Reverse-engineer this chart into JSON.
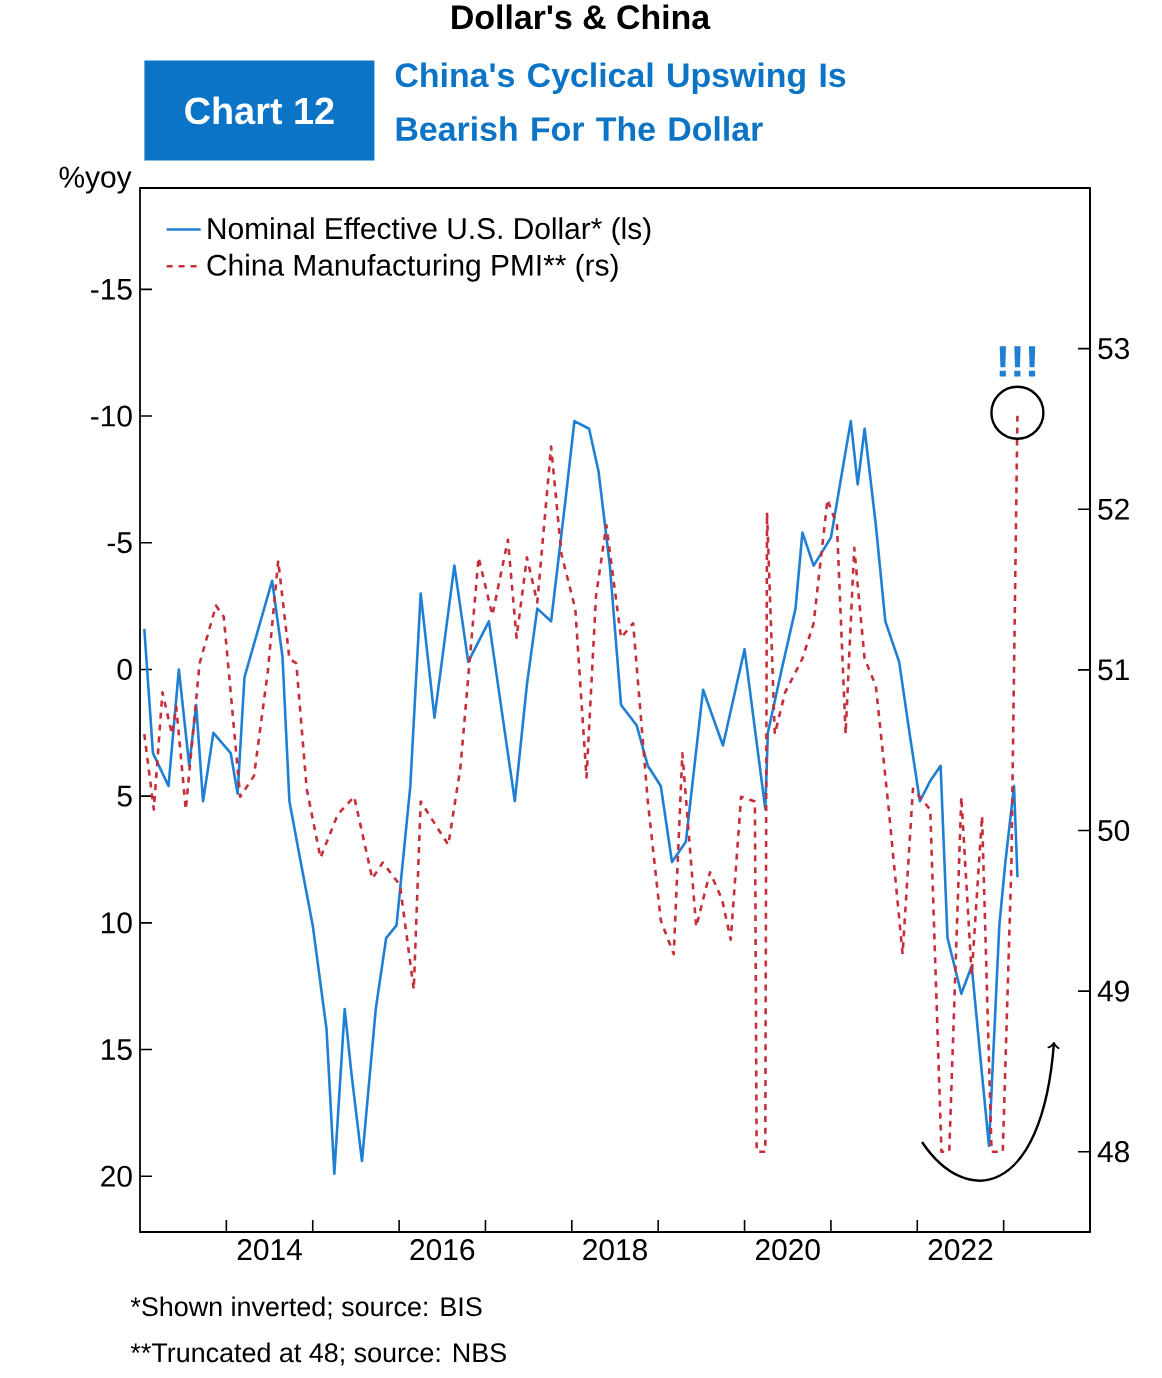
{
  "chart_data": {
    "type": "line",
    "title": "Dollar's & China",
    "subtitle": "China's Cyclical Upswing Is Bearish For The Dollar",
    "ylabel": "%yoy",
    "annotations": [
      "Chart 12",
      "!!!",
      "*Shown inverted; source: BIS",
      "**Truncated at 48; source: NBS"
    ],
    "xlim": [
      2013,
      2024
    ],
    "xticks": [
      {
        "value": 2014,
        "label": null
      },
      {
        "value": 2015,
        "label": null
      },
      {
        "value": 2016,
        "label": null
      },
      {
        "value": 2017,
        "label": null
      },
      {
        "value": 2018,
        "label": null
      },
      {
        "value": 2019,
        "label": null
      },
      {
        "value": 2020,
        "label": null
      },
      {
        "value": 2021,
        "label": null
      },
      {
        "value": 2022,
        "label": null
      },
      {
        "value": 2023,
        "label": null
      },
      {
        "value": 2014.5,
        "label": "2014"
      },
      {
        "value": 2016.5,
        "label": "2016"
      },
      {
        "value": 2018.5,
        "label": "2018"
      },
      {
        "value": 2020.5,
        "label": "2020"
      },
      {
        "value": 2022.5,
        "label": "2022"
      }
    ],
    "ylim": [
      22.2,
      -19
    ],
    "yticks": [
      -15,
      -10,
      -5,
      0,
      5,
      10,
      15,
      20
    ],
    "y2lim": [
      47.5,
      54
    ],
    "y2ticks": [
      48,
      49,
      50,
      51,
      52,
      53
    ],
    "legend": "top left",
    "series": [
      {
        "name": "Nominal Effective U.S. Dollar* (ls)",
        "color": "#1f7fd3",
        "line_style": "solid",
        "x": [
          2013.05,
          2013.15,
          2013.33,
          2013.45,
          2013.57,
          2013.65,
          2013.73,
          2013.85,
          2014.05,
          2014.13,
          2014.21,
          2014.37,
          2014.53,
          2014.65,
          2014.73,
          2014.85,
          2015.0,
          2015.16,
          2015.25,
          2015.37,
          2015.45,
          2015.57,
          2015.73,
          2015.85,
          2015.97,
          2016.13,
          2016.25,
          2016.41,
          2016.64,
          2016.8,
          2017.04,
          2017.2,
          2017.34,
          2017.48,
          2017.6,
          2017.76,
          2017.92,
          2018.03,
          2018.2,
          2018.31,
          2018.44,
          2018.57,
          2018.75,
          2018.88,
          2019.03,
          2019.16,
          2019.32,
          2019.52,
          2019.75,
          2020.0,
          2020.24,
          2020.27,
          2020.43,
          2020.59,
          2020.67,
          2020.8,
          2021.0,
          2021.23,
          2021.31,
          2021.39,
          2021.52,
          2021.63,
          2021.79,
          2021.91,
          2022.03,
          2022.15,
          2022.27,
          2022.35,
          2022.51,
          2022.63,
          2022.75,
          2022.83,
          2022.95,
          2023.02,
          2023.12,
          2023.16
        ],
        "values": [
          -1.6,
          3.3,
          4.6,
          0,
          3.8,
          1.4,
          5.2,
          2.5,
          3.3,
          4.9,
          0.3,
          -1.6,
          -3.5,
          -0.5,
          5.2,
          7.4,
          10.1,
          14.2,
          19.9,
          13.4,
          16,
          19.4,
          13.4,
          10.6,
          10.1,
          4.6,
          -3,
          1.9,
          -4.1,
          -0.3,
          -1.9,
          1.9,
          5.2,
          0.6,
          -2.4,
          -1.9,
          -6.5,
          -9.8,
          -9.5,
          -7.8,
          -4.1,
          1.4,
          2.2,
          3.8,
          4.6,
          7.6,
          6.8,
          0.8,
          3,
          -0.8,
          5.5,
          2.5,
          0,
          -2.4,
          -5.4,
          -4.1,
          -5.2,
          -9.8,
          -7.3,
          -9.5,
          -5.7,
          -1.9,
          -0.3,
          2.5,
          5.2,
          4.4,
          3.8,
          10.6,
          12.8,
          11.7,
          16,
          18.8,
          10.1,
          7.6,
          4.6,
          8.2
        ]
      },
      {
        "name": "China Manufacturing PMI** (rs)",
        "color": "#c62f3a",
        "line_style": "dashed",
        "axis": "y2",
        "x": [
          2013.05,
          2013.16,
          2013.26,
          2013.37,
          2013.42,
          2013.53,
          2013.69,
          2013.88,
          2013.97,
          2014.16,
          2014.32,
          2014.48,
          2014.6,
          2014.73,
          2014.81,
          2014.93,
          2015.09,
          2015.29,
          2015.48,
          2015.69,
          2015.81,
          2016.01,
          2016.17,
          2016.25,
          2016.57,
          2016.71,
          2016.92,
          2017.08,
          2017.26,
          2017.36,
          2017.48,
          2017.6,
          2017.76,
          2017.88,
          2018.04,
          2018.17,
          2018.28,
          2018.4,
          2018.57,
          2018.71,
          2018.88,
          2019.03,
          2019.18,
          2019.28,
          2019.44,
          2019.6,
          2019.74,
          2019.84,
          2019.96,
          2020.12,
          2020.14,
          2020.24,
          2020.26,
          2020.35,
          2020.47,
          2020.67,
          2020.8,
          2020.96,
          2021.07,
          2021.17,
          2021.27,
          2021.39,
          2021.52,
          2021.67,
          2021.83,
          2021.95,
          2022.15,
          2022.28,
          2022.37,
          2022.51,
          2022.63,
          2022.75,
          2022.86,
          2022.99,
          2023.09,
          2023.16
        ],
        "values": [
          50.6,
          50.13,
          50.86,
          50.6,
          50.77,
          50.13,
          51.04,
          51.4,
          51.33,
          50.21,
          50.34,
          50.99,
          51.68,
          51.07,
          51.04,
          50.26,
          49.83,
          50.1,
          50.21,
          49.7,
          49.8,
          49.66,
          49.01,
          50.18,
          49.91,
          50.39,
          51.7,
          51.34,
          51.81,
          51.2,
          51.7,
          51.42,
          52.39,
          51.72,
          51.38,
          50.33,
          51.46,
          51.9,
          51.2,
          51.29,
          50.18,
          49.44,
          49.23,
          50.48,
          49.4,
          49.74,
          49.57,
          49.32,
          50.21,
          50.18,
          48,
          48,
          51.98,
          50.6,
          50.86,
          51.07,
          51.29,
          52.06,
          51.9,
          50.6,
          51.76,
          51.07,
          50.9,
          50.13,
          49.23,
          50.26,
          50.13,
          48,
          48,
          50.21,
          49.1,
          50.09,
          48,
          48,
          49.79,
          52.6
        ]
      }
    ]
  }
}
